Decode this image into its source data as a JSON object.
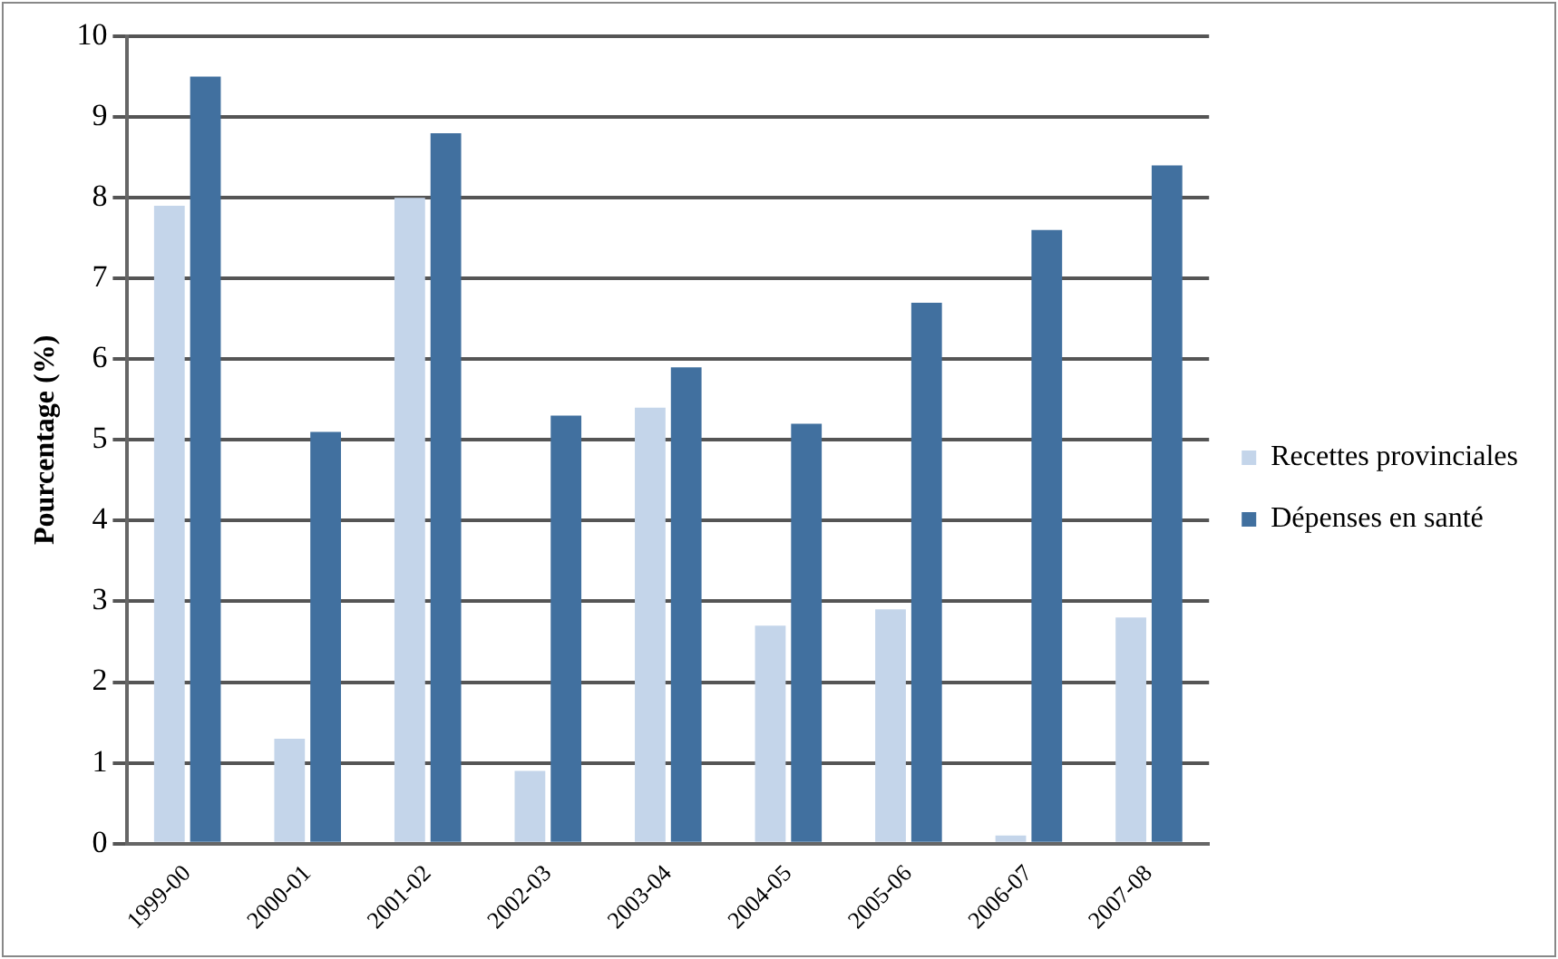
{
  "chart_data": {
    "type": "bar",
    "ylabel": "Pourcentage (%)",
    "categories": [
      "1999-00",
      "2000-01",
      "2001-02",
      "2002-03",
      "2003-04",
      "2004-05",
      "2005-06",
      "2006-07",
      "2007-08"
    ],
    "series": [
      {
        "name": "Recettes provinciales",
        "color": "#c4d5ea",
        "values": [
          7.9,
          1.3,
          8.0,
          0.9,
          5.4,
          2.7,
          2.9,
          0.1,
          2.8
        ]
      },
      {
        "name": "Dépenses en santé",
        "color": "#41709f",
        "values": [
          9.5,
          5.1,
          8.8,
          5.3,
          5.9,
          5.2,
          6.7,
          7.6,
          8.4
        ]
      }
    ],
    "ylim": [
      0,
      10
    ],
    "yticks": [
      0,
      1,
      2,
      3,
      4,
      5,
      6,
      7,
      8,
      9,
      10
    ],
    "grid": "y",
    "legend": "right"
  }
}
